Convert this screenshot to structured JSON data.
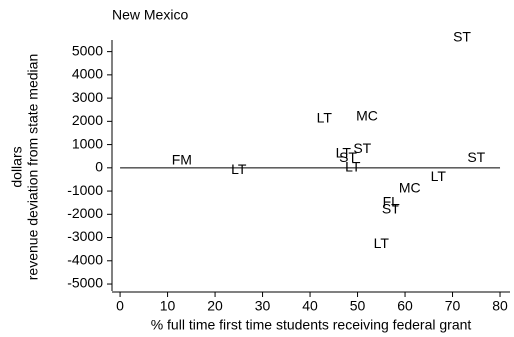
{
  "chart_data": {
    "type": "scatter",
    "title": "New Mexico",
    "xlabel": "% full time first time students receiving federal grant",
    "ylabel": [
      "dollars",
      "revenue deviation from state median"
    ],
    "x": [
      72,
      52,
      43,
      51,
      47,
      48,
      13,
      75,
      49,
      25,
      67,
      61,
      57,
      57,
      55
    ],
    "values": [
      5600,
      2200,
      2100,
      800,
      600,
      400,
      300,
      400,
      0,
      -100,
      -400,
      -900,
      -1500,
      -1800,
      -3300
    ],
    "point_labels": [
      "ST",
      "MC",
      "LT",
      "ST",
      "LT",
      "ST",
      "FM",
      "ST",
      "LT",
      "LT",
      "LT",
      "MC",
      "FL",
      "ST",
      "LT"
    ],
    "xlim": [
      -1.7,
      82.1
    ],
    "ylim": [
      -5300,
      5500
    ],
    "xticks": [
      0,
      10,
      20,
      30,
      40,
      50,
      60,
      70,
      80
    ],
    "yticks": [
      -5000,
      -4000,
      -3000,
      -2000,
      -1000,
      0,
      1000,
      2000,
      3000,
      4000,
      5000
    ],
    "zero_line": true
  }
}
